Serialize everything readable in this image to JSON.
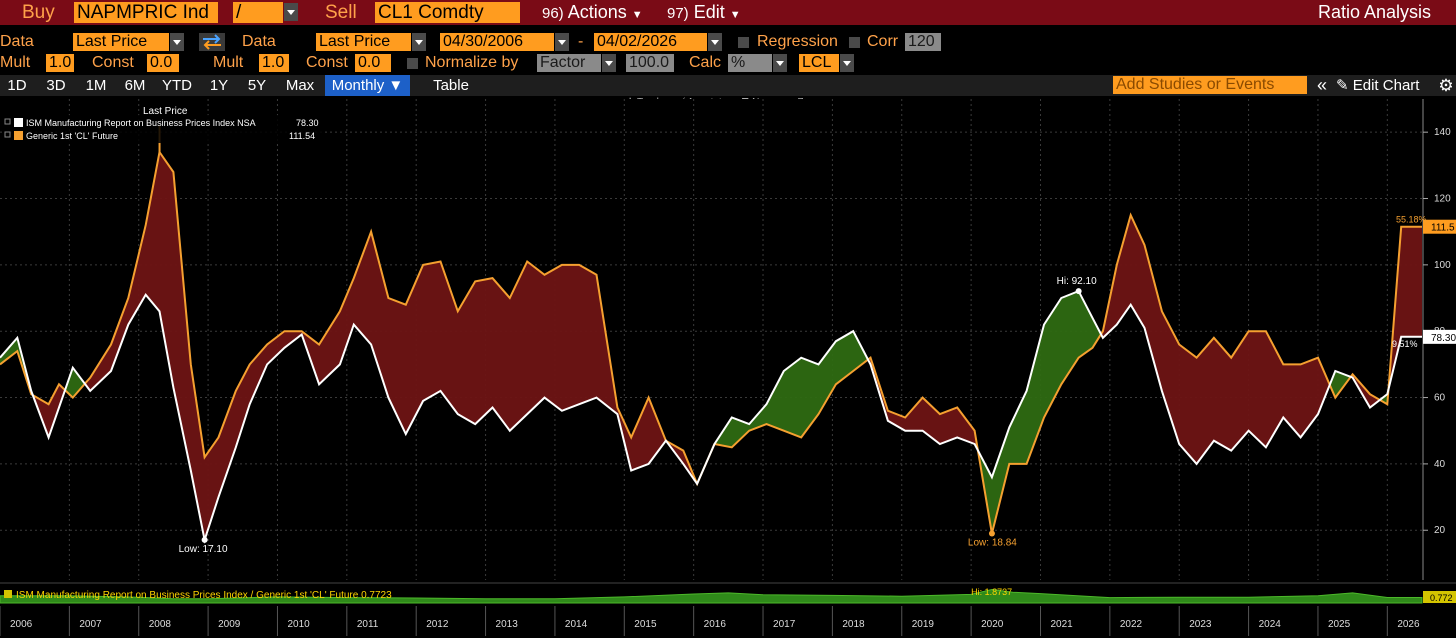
{
  "topbar": {
    "buy_label": "Buy",
    "buy_ticker": "NAPMPRIC Ind",
    "operator": "/",
    "sell_label": "Sell",
    "sell_ticker": "CL1 Comdty",
    "actions_num": "96)",
    "actions_label": "Actions",
    "edit_num": "97)",
    "edit_label": "Edit",
    "title": "Ratio Analysis"
  },
  "settings": {
    "data1_label": "Data",
    "data1_value": "Last Price",
    "data2_label": "Data",
    "data2_value": "Last Price",
    "start_date": "04/30/2006",
    "date_sep": "-",
    "end_date": "04/02/2026",
    "regression_label": "Regression",
    "corr_label": "Corr",
    "corr_value": "120",
    "mult1_label": "Mult",
    "mult1_value": "1.0",
    "const1_label": "Const",
    "const1_value": "0.0",
    "mult2_label": "Mult",
    "mult2_value": "1.0",
    "const2_label": "Const",
    "const2_value": "0.0",
    "normalize_label": "Normalize by",
    "normalize_value": "Factor",
    "factor_value": "100.0",
    "calc_label": "Calc",
    "calc_value": "%",
    "currency_value": "LCL"
  },
  "nav": {
    "ranges": [
      "1D",
      "3D",
      "1M",
      "6M",
      "YTD",
      "1Y",
      "5Y",
      "Max"
    ],
    "period": "Monthly ▼",
    "table": "Table",
    "studies_placeholder": "Add Studies or Events",
    "collapse": "«",
    "edit_chart": "Edit Chart"
  },
  "toolbar": {
    "track": "Track",
    "annotate": "Annotate",
    "news": "News",
    "zoom": "Zoom"
  },
  "colors": {
    "ism": "#ffffff",
    "oil": "#f5a030",
    "fill_above": "#6e1414",
    "fill_below": "#2e6a12",
    "ratio": "#2f8a1a",
    "accent": "#ff9c1f",
    "titlebar": "#7a0b16"
  },
  "chart_data": {
    "type": "area",
    "title": "",
    "legend_header": "Last Price",
    "legend": "top-left",
    "grid": true,
    "x_years": [
      "2006",
      "2007",
      "2008",
      "2009",
      "2010",
      "2011",
      "2012",
      "2013",
      "2014",
      "2015",
      "2016",
      "2017",
      "2018",
      "2019",
      "2020",
      "2021",
      "2022",
      "2023",
      "2024",
      "2025",
      "2026"
    ],
    "xlim": [
      2006.0,
      2026.5
    ],
    "ylim": [
      5,
      150
    ],
    "yticks": [
      20,
      40,
      60,
      80,
      100,
      120,
      140
    ],
    "series": [
      {
        "name": "ISM Manufacturing Report on Business Prices Index NSA",
        "last_value": "78.30",
        "label_last": "78.30",
        "x": [
          2006.0,
          2006.25,
          2006.45,
          2006.7,
          2006.85,
          2007.05,
          2007.3,
          2007.6,
          2007.85,
          2008.1,
          2008.3,
          2008.5,
          2008.75,
          2008.95,
          2009.15,
          2009.4,
          2009.6,
          2009.85,
          2010.1,
          2010.35,
          2010.6,
          2010.9,
          2011.1,
          2011.35,
          2011.6,
          2011.85,
          2012.1,
          2012.35,
          2012.6,
          2012.85,
          2013.1,
          2013.35,
          2013.6,
          2013.85,
          2014.1,
          2014.35,
          2014.6,
          2014.9,
          2015.1,
          2015.35,
          2015.6,
          2015.85,
          2016.05,
          2016.3,
          2016.55,
          2016.8,
          2017.05,
          2017.3,
          2017.55,
          2017.8,
          2018.05,
          2018.3,
          2018.55,
          2018.8,
          2019.05,
          2019.3,
          2019.55,
          2019.8,
          2020.05,
          2020.3,
          2020.55,
          2020.8,
          2021.05,
          2021.3,
          2021.55,
          2021.75,
          2021.9,
          2022.1,
          2022.3,
          2022.5,
          2022.75,
          2023.0,
          2023.25,
          2023.5,
          2023.75,
          2024.0,
          2024.25,
          2024.5,
          2024.75,
          2025.0,
          2025.25,
          2025.5,
          2025.75,
          2026.0,
          2026.2,
          2026.5
        ],
        "values": [
          72,
          78,
          62,
          48,
          57,
          69,
          62,
          68,
          82,
          91,
          86,
          63,
          38,
          17.1,
          30,
          45,
          58,
          70,
          75,
          79,
          64,
          70,
          82,
          76,
          60,
          49,
          59,
          62,
          55,
          52,
          57,
          50,
          55,
          60,
          56,
          58,
          60,
          55,
          38,
          40,
          47,
          40,
          34,
          46,
          54,
          52,
          58,
          68,
          72,
          70,
          77,
          80,
          70,
          53,
          50,
          50,
          46,
          48,
          46,
          36,
          51,
          62,
          82,
          90,
          92.1,
          84,
          78,
          82,
          88,
          81,
          62,
          46,
          40,
          47,
          44,
          50,
          45,
          54,
          48,
          55,
          68,
          66,
          57,
          61,
          78.3,
          78.3
        ]
      },
      {
        "name": "Generic 1st 'CL' Future",
        "last_value": "111.54",
        "label_last": "111.5",
        "x": [
          2006.0,
          2006.25,
          2006.45,
          2006.7,
          2006.85,
          2007.05,
          2007.3,
          2007.6,
          2007.85,
          2008.1,
          2008.3,
          2008.5,
          2008.75,
          2008.95,
          2009.15,
          2009.4,
          2009.6,
          2009.85,
          2010.1,
          2010.35,
          2010.6,
          2010.9,
          2011.1,
          2011.35,
          2011.6,
          2011.85,
          2012.1,
          2012.35,
          2012.6,
          2012.85,
          2013.1,
          2013.35,
          2013.6,
          2013.85,
          2014.1,
          2014.35,
          2014.6,
          2014.9,
          2015.1,
          2015.35,
          2015.6,
          2015.85,
          2016.05,
          2016.3,
          2016.55,
          2016.8,
          2017.05,
          2017.3,
          2017.55,
          2017.8,
          2018.05,
          2018.3,
          2018.55,
          2018.8,
          2019.05,
          2019.3,
          2019.55,
          2019.8,
          2020.05,
          2020.3,
          2020.55,
          2020.8,
          2021.05,
          2021.3,
          2021.55,
          2021.75,
          2021.9,
          2022.1,
          2022.3,
          2022.5,
          2022.75,
          2023.0,
          2023.25,
          2023.5,
          2023.75,
          2024.0,
          2024.25,
          2024.5,
          2024.75,
          2025.0,
          2025.25,
          2025.5,
          2025.75,
          2026.0,
          2026.2,
          2026.5
        ],
        "values": [
          70,
          74,
          61,
          58,
          64,
          60,
          66,
          76,
          90,
          112,
          134,
          128,
          70,
          42,
          48,
          62,
          70,
          76,
          80,
          80,
          76,
          86,
          96,
          110,
          90,
          88,
          100,
          101,
          86,
          95,
          96,
          90,
          101,
          97,
          100,
          100,
          97,
          57,
          48,
          60,
          47,
          44,
          34,
          46,
          45,
          50,
          52,
          50,
          48,
          55,
          64,
          68,
          72,
          56,
          54,
          60,
          55,
          57,
          50,
          19,
          40,
          40,
          54,
          64,
          72,
          75,
          80,
          100,
          115,
          106,
          86,
          76,
          72,
          78,
          72,
          80,
          80,
          70,
          70,
          72,
          60,
          67,
          61,
          58,
          111.5,
          111.5
        ]
      }
    ],
    "annotations": {
      "low_ism": "Low: 17.10",
      "low_oil": "Low: 18.84",
      "hi_ism": "Hi: 92.10",
      "pct_oil": "55.18%",
      "pct_ism": "9.51%"
    },
    "ratio_panel": {
      "name": "ISM Manufacturing Report on Business Prices Index / Generic 1st 'CL' Future",
      "last_value": "0.7723",
      "label_last": "0.772",
      "hi_label": "Hi: 1.8737",
      "ylim": [
        0,
        2.5
      ],
      "x": [
        2006.0,
        2007.0,
        2008.0,
        2008.5,
        2009.0,
        2010.0,
        2011.0,
        2012.0,
        2013.0,
        2014.0,
        2015.0,
        2016.0,
        2016.5,
        2017.0,
        2018.0,
        2019.0,
        2020.0,
        2020.3,
        2020.6,
        2021.0,
        2022.0,
        2023.0,
        2024.0,
        2025.0,
        2025.5,
        2026.0,
        2026.5
      ],
      "values": [
        1.0,
        1.0,
        0.8,
        0.6,
        0.6,
        0.85,
        0.75,
        0.7,
        0.6,
        0.6,
        0.85,
        1.25,
        1.4,
        1.15,
        1.05,
        0.95,
        1.2,
        1.87,
        1.5,
        1.3,
        0.75,
        0.8,
        0.8,
        1.0,
        1.4,
        0.77,
        0.77
      ]
    }
  }
}
